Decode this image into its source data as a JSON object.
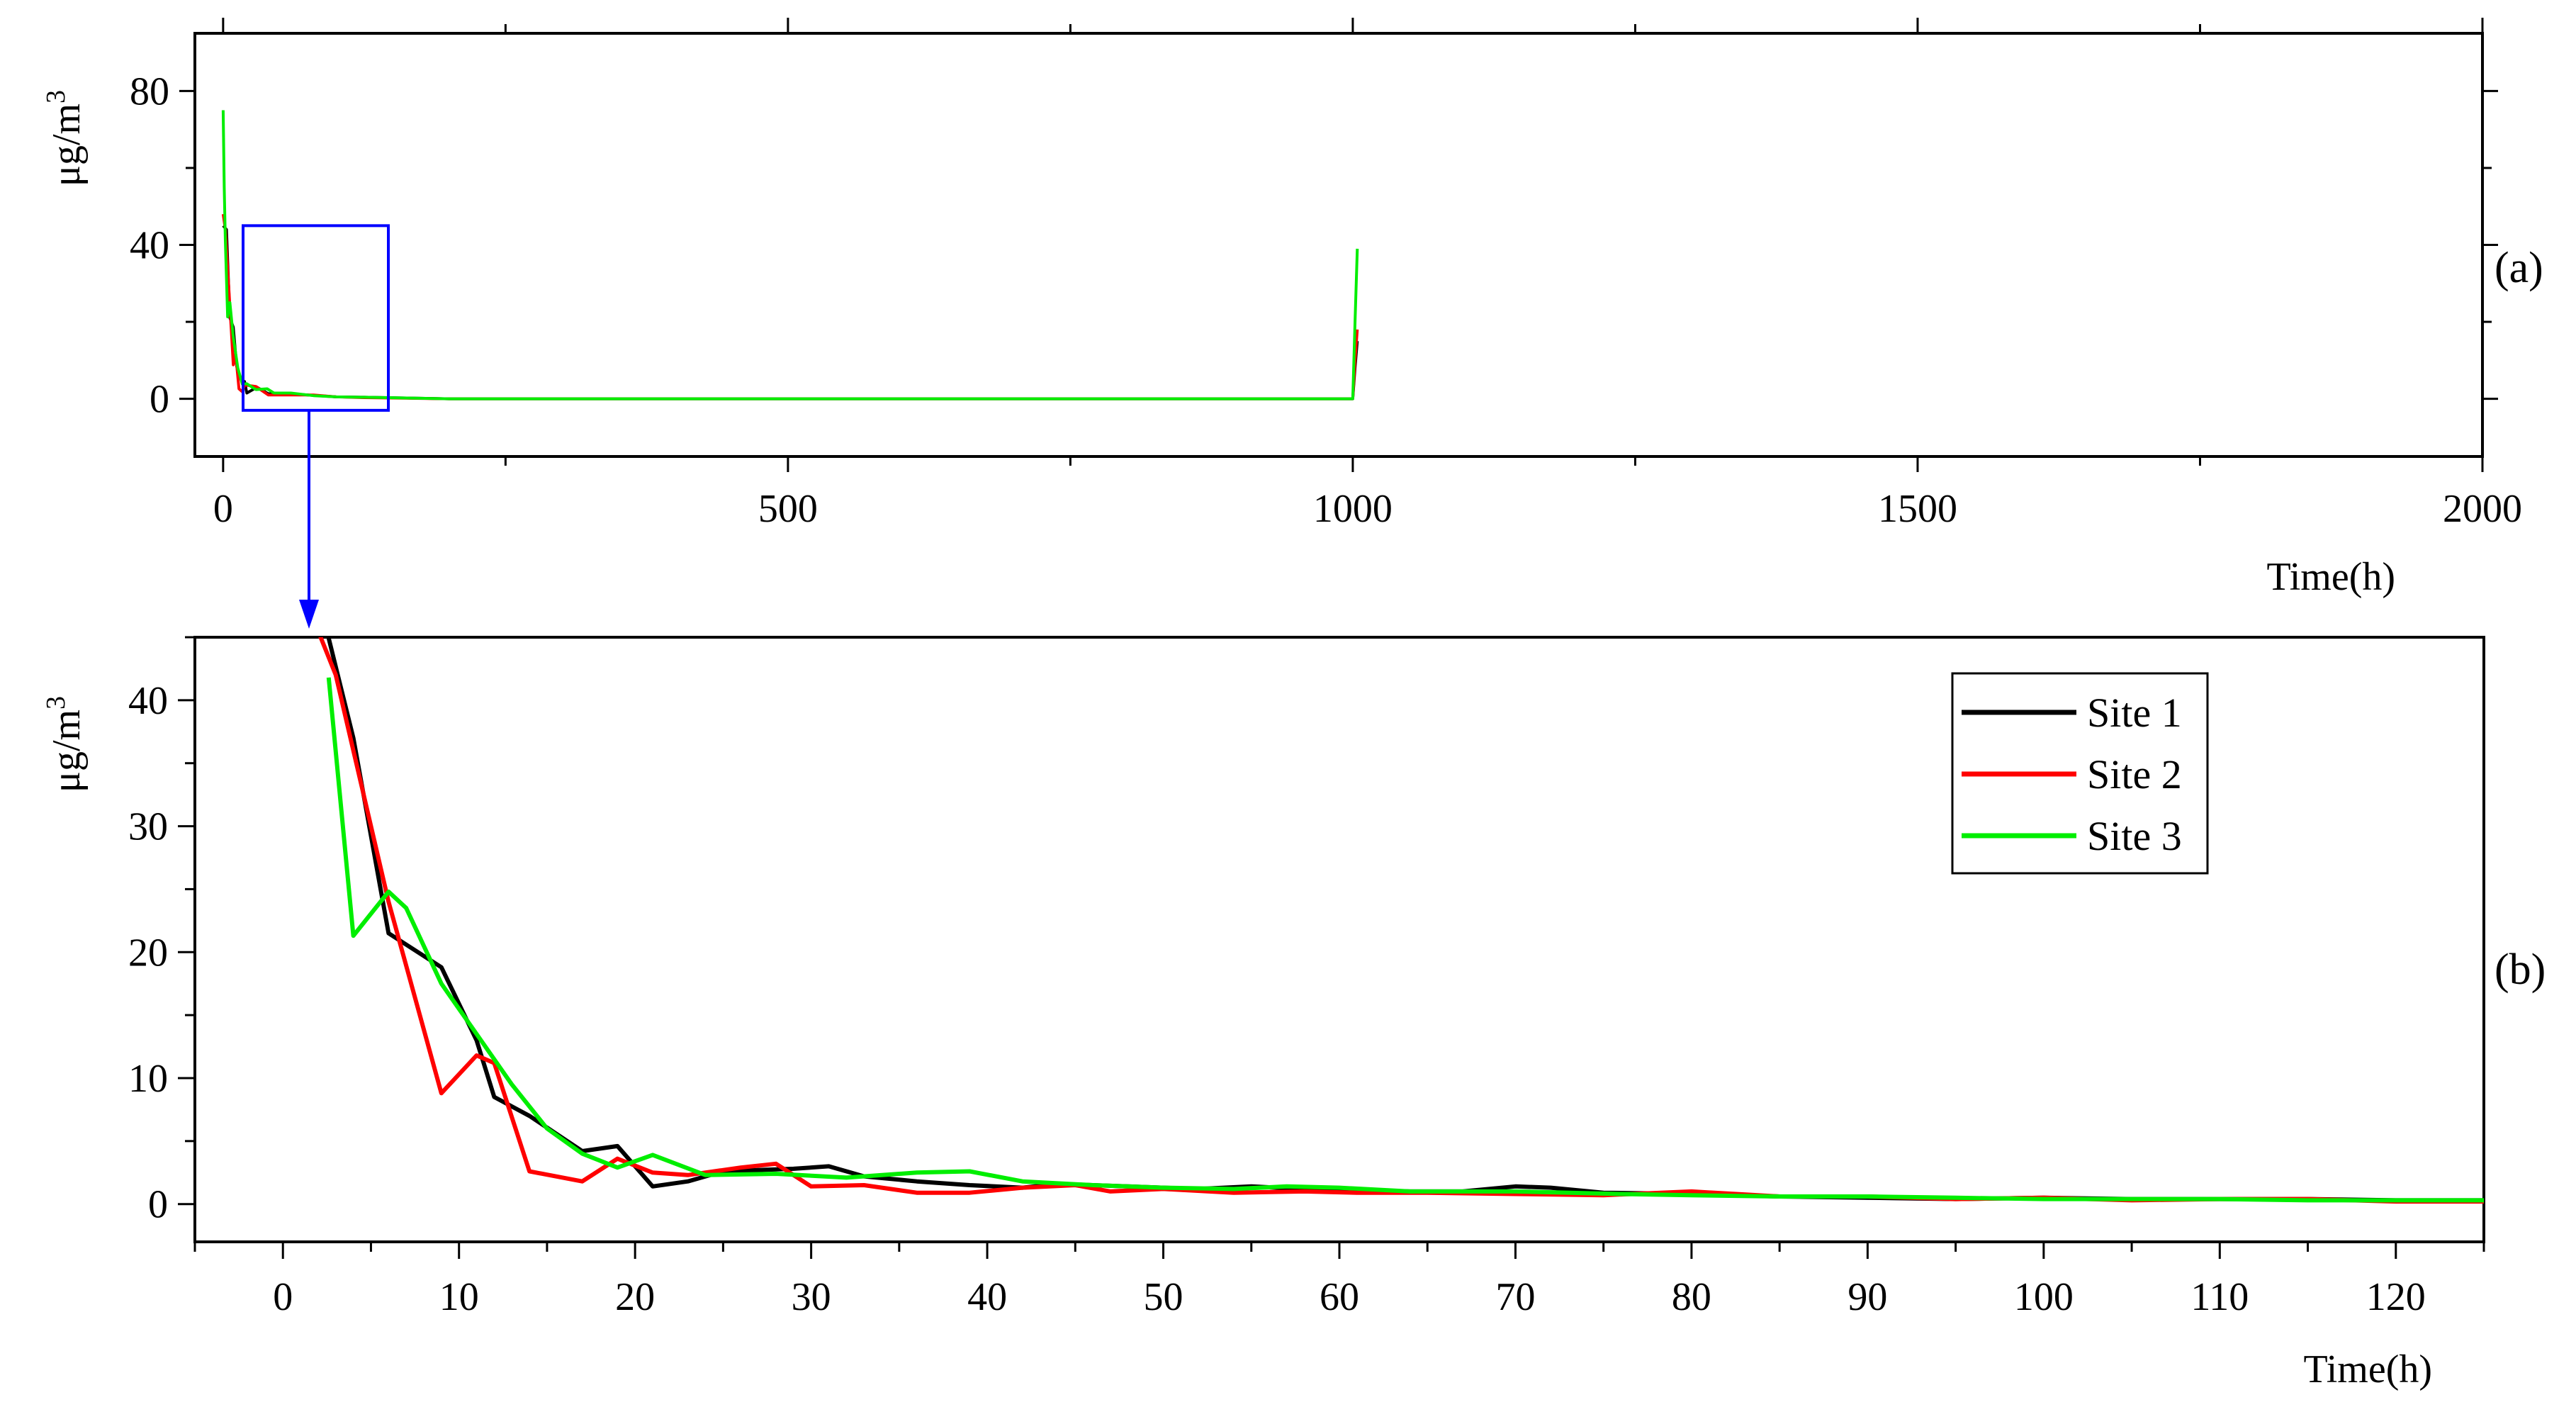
{
  "chart_data": [
    {
      "panel_label": "(a)",
      "type": "line",
      "xlabel": "Time(h)",
      "ylabel": "μg/m³",
      "xlim": [
        -25,
        2000
      ],
      "ylim": [
        -15,
        95
      ],
      "x_ticks": [
        0,
        500,
        1000,
        1500,
        2000
      ],
      "x_tick_labels": [
        "0",
        "500",
        "1000",
        "1500",
        "2000"
      ],
      "y_ticks": [
        0,
        40,
        80
      ],
      "y_tick_labels": [
        "0",
        "40",
        "80"
      ],
      "grid": false,
      "zoom_box": {
        "x_range": [
          -5,
          125
        ],
        "y_range": [
          -3,
          45
        ],
        "color": "#0000ff",
        "arrow_to": "(b)"
      },
      "series": [
        {
          "color": "#000000",
          "points": [
            [
              0,
              45
            ],
            [
              3,
              44
            ],
            [
              6,
              21
            ],
            [
              9,
              18.6
            ],
            [
              12,
              8.4
            ],
            [
              17,
              4
            ],
            [
              19,
              4.5
            ],
            [
              21,
              1.5
            ],
            [
              30,
              3
            ],
            [
              40,
              1.3
            ],
            [
              60,
              1.3
            ],
            [
              75,
              1
            ],
            [
              100,
              0.5
            ],
            [
              125,
              0.4
            ],
            [
              200,
              0
            ],
            [
              1000,
              0
            ],
            [
              1002,
              8
            ],
            [
              1004,
              15
            ]
          ]
        },
        {
          "color": "#ff0000",
          "points": [
            [
              0,
              48
            ],
            [
              2,
              44
            ],
            [
              6,
              24
            ],
            [
              9,
              8.8
            ],
            [
              11,
              11.8
            ],
            [
              14,
              2.6
            ],
            [
              17,
              1.8
            ],
            [
              19,
              3.6
            ],
            [
              29,
              3.2
            ],
            [
              40,
              1
            ],
            [
              60,
              1
            ],
            [
              80,
              1
            ],
            [
              100,
              0.5
            ],
            [
              125,
              0.3
            ],
            [
              200,
              0
            ],
            [
              1000,
              0
            ],
            [
              1002,
              10
            ],
            [
              1004,
              18
            ]
          ]
        },
        {
          "color": "#00ee00",
          "points": [
            [
              0,
              75
            ],
            [
              1,
              55
            ],
            [
              2,
              41
            ],
            [
              4,
              21.3
            ],
            [
              6,
              25
            ],
            [
              9,
              16
            ],
            [
              13,
              8
            ],
            [
              17,
              3.8
            ],
            [
              21,
              3.9
            ],
            [
              29,
              2.4
            ],
            [
              39,
              2.6
            ],
            [
              45,
              1.5
            ],
            [
              60,
              1.5
            ],
            [
              80,
              0.8
            ],
            [
              100,
              0.5
            ],
            [
              125,
              0.4
            ],
            [
              200,
              0
            ],
            [
              1000,
              0
            ],
            [
              1002,
              20
            ],
            [
              1004,
              39
            ]
          ]
        }
      ]
    },
    {
      "panel_label": "(b)",
      "type": "line",
      "xlabel": "Time(h)",
      "ylabel": "μg/m³",
      "xlim": [
        -5,
        125
      ],
      "ylim": [
        -3,
        45
      ],
      "x_ticks": [
        0,
        10,
        20,
        30,
        40,
        50,
        60,
        70,
        80,
        90,
        100,
        110,
        120
      ],
      "x_tick_labels": [
        "0",
        "10",
        "20",
        "30",
        "40",
        "50",
        "60",
        "70",
        "80",
        "90",
        "100",
        "110",
        "120"
      ],
      "y_ticks": [
        0,
        10,
        20,
        30,
        40
      ],
      "y_tick_labels": [
        "0",
        "10",
        "20",
        "30",
        "40"
      ],
      "grid": false,
      "legend_position": "top-right",
      "series": [
        {
          "name": "Site 1",
          "color": "#000000",
          "points": [
            [
              2.5,
              45.5
            ],
            [
              4,
              37
            ],
            [
              6,
              21.5
            ],
            [
              9,
              18.8
            ],
            [
              11,
              13
            ],
            [
              12,
              8.5
            ],
            [
              14,
              7
            ],
            [
              17,
              4.2
            ],
            [
              19,
              4.6
            ],
            [
              21,
              1.4
            ],
            [
              23,
              1.8
            ],
            [
              25,
              2.6
            ],
            [
              29,
              2.8
            ],
            [
              31,
              3
            ],
            [
              33,
              2.2
            ],
            [
              36,
              1.8
            ],
            [
              39,
              1.5
            ],
            [
              42,
              1.3
            ],
            [
              44,
              1.6
            ],
            [
              48,
              1.4
            ],
            [
              52,
              1.2
            ],
            [
              55,
              1.4
            ],
            [
              58,
              1.2
            ],
            [
              61,
              1.1
            ],
            [
              64,
              1
            ],
            [
              67,
              1
            ],
            [
              70,
              1.4
            ],
            [
              72,
              1.3
            ],
            [
              75,
              0.9
            ],
            [
              80,
              0.8
            ],
            [
              85,
              0.6
            ],
            [
              90,
              0.5
            ],
            [
              95,
              0.4
            ],
            [
              100,
              0.5
            ],
            [
              105,
              0.4
            ],
            [
              110,
              0.4
            ],
            [
              115,
              0.4
            ],
            [
              120,
              0.3
            ],
            [
              125,
              0.3
            ]
          ]
        },
        {
          "name": "Site 2",
          "color": "#ff0000",
          "points": [
            [
              2,
              45.5
            ],
            [
              3,
              42
            ],
            [
              6,
              24
            ],
            [
              9,
              8.8
            ],
            [
              11,
              11.8
            ],
            [
              12,
              11.2
            ],
            [
              14,
              2.6
            ],
            [
              17,
              1.8
            ],
            [
              19,
              3.6
            ],
            [
              21,
              2.5
            ],
            [
              23,
              2.3
            ],
            [
              26,
              2.9
            ],
            [
              28,
              3.2
            ],
            [
              30,
              1.4
            ],
            [
              33,
              1.5
            ],
            [
              36,
              0.9
            ],
            [
              39,
              0.9
            ],
            [
              42,
              1.3
            ],
            [
              45,
              1.5
            ],
            [
              47,
              1
            ],
            [
              50,
              1.2
            ],
            [
              54,
              0.9
            ],
            [
              58,
              1
            ],
            [
              61,
              0.9
            ],
            [
              65,
              0.9
            ],
            [
              70,
              0.8
            ],
            [
              75,
              0.7
            ],
            [
              80,
              1
            ],
            [
              85,
              0.6
            ],
            [
              90,
              0.6
            ],
            [
              95,
              0.4
            ],
            [
              100,
              0.5
            ],
            [
              105,
              0.3
            ],
            [
              110,
              0.4
            ],
            [
              115,
              0.4
            ],
            [
              120,
              0.2
            ],
            [
              125,
              0.2
            ]
          ]
        },
        {
          "name": "Site 3",
          "color": "#00ee00",
          "points": [
            [
              2.6,
              41.8
            ],
            [
              4,
              21.3
            ],
            [
              6,
              24.8
            ],
            [
              7,
              23.5
            ],
            [
              9,
              17.5
            ],
            [
              11,
              13.5
            ],
            [
              13,
              9.5
            ],
            [
              15,
              6
            ],
            [
              17,
              4
            ],
            [
              19,
              2.9
            ],
            [
              21,
              3.9
            ],
            [
              24,
              2.3
            ],
            [
              28,
              2.4
            ],
            [
              32,
              2.1
            ],
            [
              36,
              2.5
            ],
            [
              39,
              2.6
            ],
            [
              42,
              1.8
            ],
            [
              46,
              1.5
            ],
            [
              50,
              1.3
            ],
            [
              54,
              1.2
            ],
            [
              57,
              1.4
            ],
            [
              60,
              1.3
            ],
            [
              64,
              1
            ],
            [
              70,
              1
            ],
            [
              76,
              0.8
            ],
            [
              80,
              0.7
            ],
            [
              85,
              0.6
            ],
            [
              90,
              0.6
            ],
            [
              95,
              0.5
            ],
            [
              100,
              0.4
            ],
            [
              105,
              0.4
            ],
            [
              110,
              0.4
            ],
            [
              115,
              0.3
            ],
            [
              120,
              0.3
            ],
            [
              125,
              0.3
            ]
          ]
        }
      ]
    }
  ]
}
